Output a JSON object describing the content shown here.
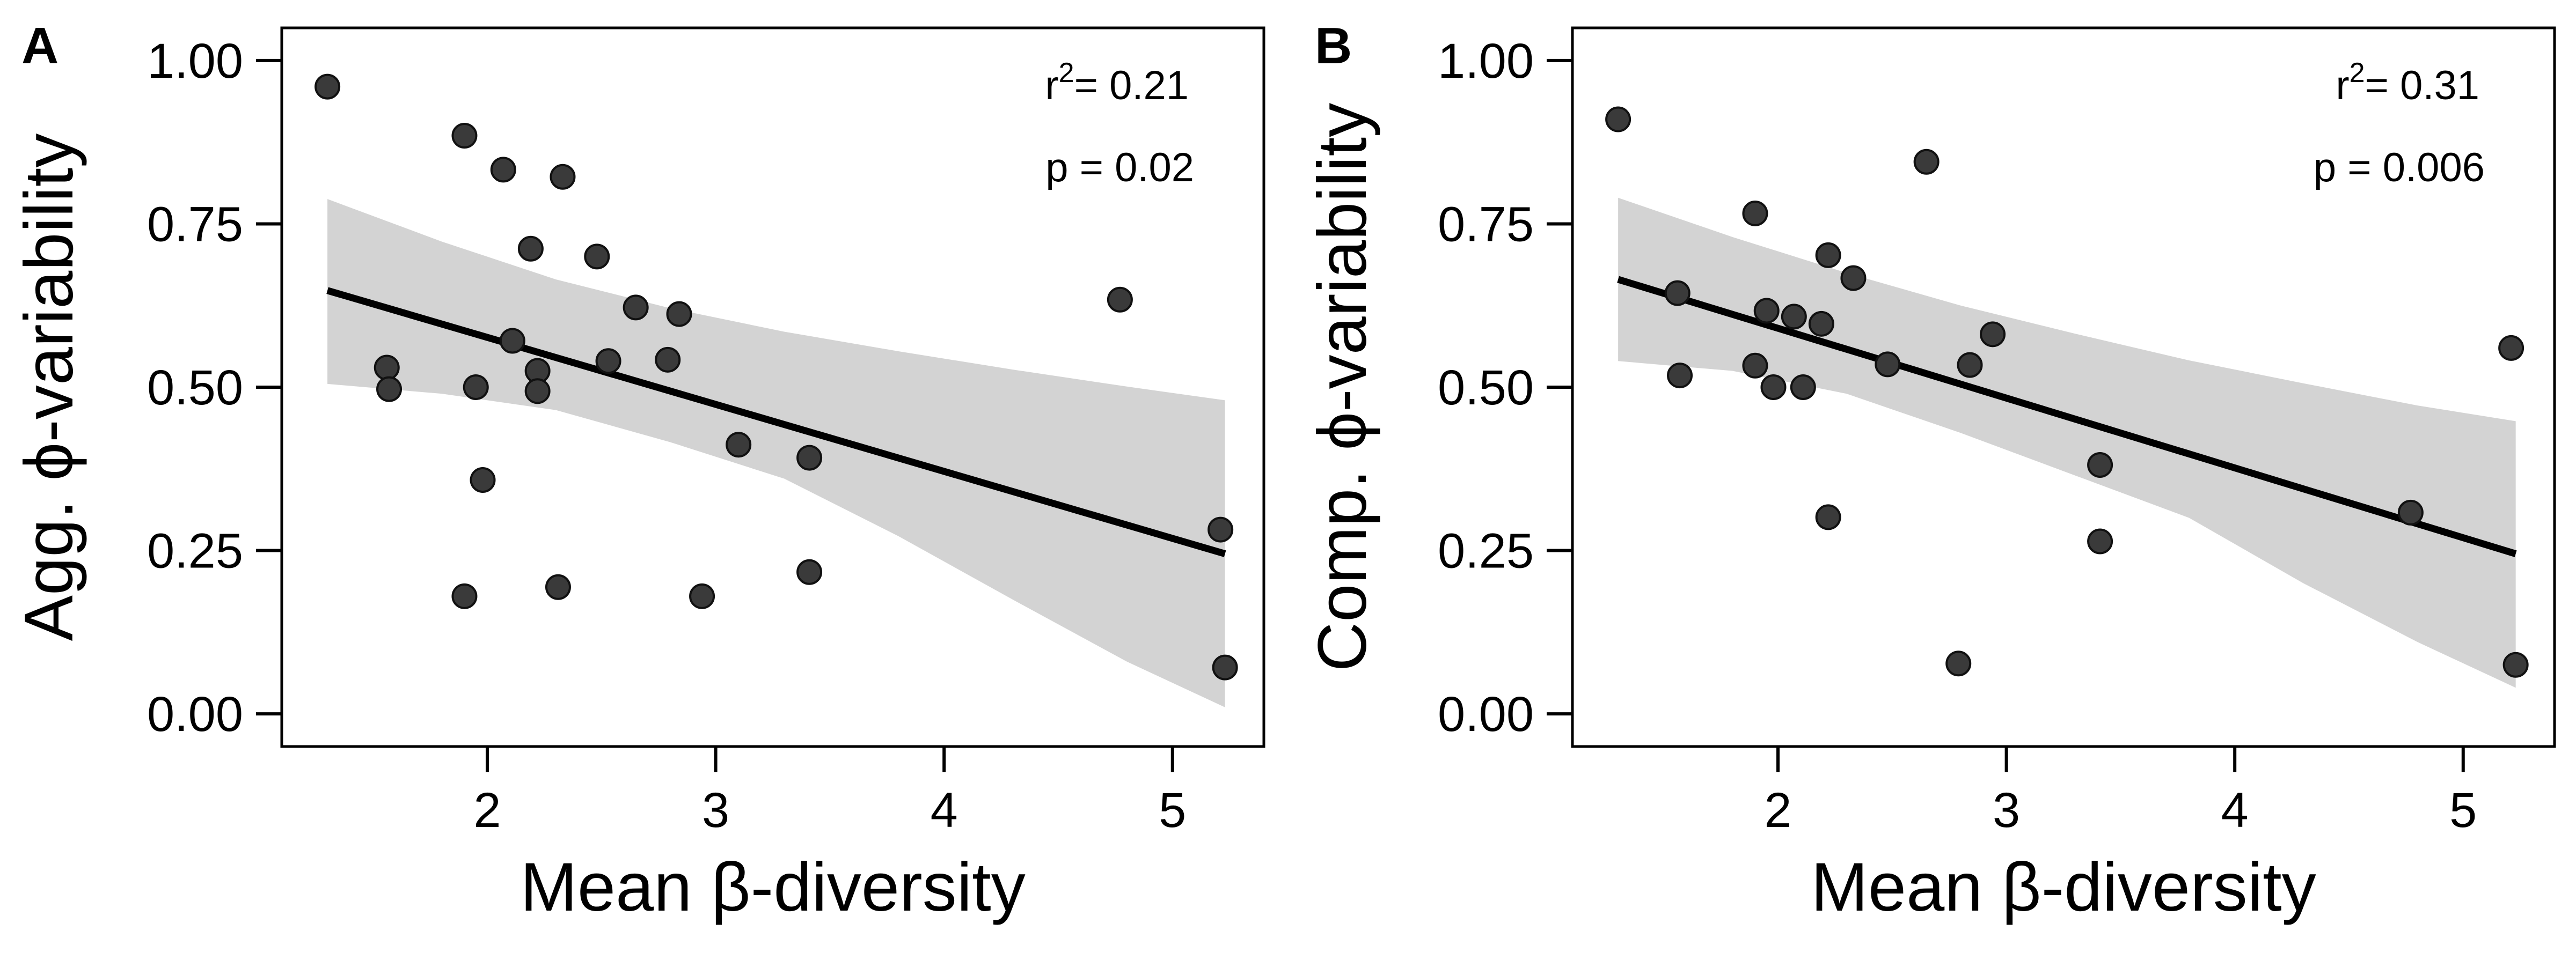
{
  "chart_data": [
    {
      "type": "scatter",
      "panel_label": "A",
      "xlabel": "Mean β-diversity",
      "ylabel": "Agg. ϕ-variability",
      "xlim": [
        1.1,
        5.4
      ],
      "ylim": [
        -0.05,
        1.05
      ],
      "xticks": [
        2,
        3,
        4,
        5
      ],
      "xtick_labels": [
        "2",
        "3",
        "4",
        "5"
      ],
      "yticks": [
        0,
        0.25,
        0.5,
        0.75,
        1.0
      ],
      "ytick_labels": [
        "0.00",
        "0.25",
        "0.50",
        "0.75",
        "1.00"
      ],
      "grid": false,
      "legend": "none",
      "stats": {
        "r2_prefix": "r",
        "r2_superscript": "2",
        "r2_value": "= 0.21",
        "p_text": "p = 0.02"
      },
      "points": [
        {
          "x": 1.3,
          "y": 0.96
        },
        {
          "x": 1.9,
          "y": 0.885
        },
        {
          "x": 2.07,
          "y": 0.833
        },
        {
          "x": 2.33,
          "y": 0.822
        },
        {
          "x": 2.19,
          "y": 0.712
        },
        {
          "x": 2.48,
          "y": 0.7
        },
        {
          "x": 4.77,
          "y": 0.634
        },
        {
          "x": 2.65,
          "y": 0.622
        },
        {
          "x": 2.84,
          "y": 0.612
        },
        {
          "x": 2.11,
          "y": 0.571
        },
        {
          "x": 2.53,
          "y": 0.54
        },
        {
          "x": 2.79,
          "y": 0.542
        },
        {
          "x": 1.56,
          "y": 0.53
        },
        {
          "x": 2.22,
          "y": 0.525
        },
        {
          "x": 1.57,
          "y": 0.497
        },
        {
          "x": 1.95,
          "y": 0.5
        },
        {
          "x": 2.22,
          "y": 0.494
        },
        {
          "x": 3.1,
          "y": 0.412
        },
        {
          "x": 3.41,
          "y": 0.392
        },
        {
          "x": 1.98,
          "y": 0.358
        },
        {
          "x": 5.21,
          "y": 0.282
        },
        {
          "x": 3.41,
          "y": 0.217
        },
        {
          "x": 2.31,
          "y": 0.194
        },
        {
          "x": 1.9,
          "y": 0.18
        },
        {
          "x": 2.94,
          "y": 0.18
        },
        {
          "x": 5.23,
          "y": 0.071
        }
      ],
      "fit": {
        "x": [
          1.3,
          5.23
        ],
        "y": [
          0.648,
          0.245
        ]
      },
      "ci_band": {
        "x": [
          1.3,
          1.8,
          2.3,
          2.8,
          3.3,
          3.8,
          4.3,
          4.8,
          5.23
        ],
        "upper": [
          0.788,
          0.723,
          0.665,
          0.621,
          0.585,
          0.555,
          0.527,
          0.501,
          0.48
        ],
        "lower": [
          0.505,
          0.49,
          0.465,
          0.416,
          0.36,
          0.272,
          0.175,
          0.08,
          0.01
        ]
      },
      "colors": {
        "points": "#3a3a3a",
        "fit_line": "#000000",
        "ci_band": "#d3d3d3"
      }
    },
    {
      "type": "scatter",
      "panel_label": "B",
      "xlabel": "Mean β-diversity",
      "ylabel": "Comp. ϕ-variability",
      "xlim": [
        1.1,
        5.4
      ],
      "ylim": [
        -0.05,
        1.05
      ],
      "xticks": [
        2,
        3,
        4,
        5
      ],
      "xtick_labels": [
        "2",
        "3",
        "4",
        "5"
      ],
      "yticks": [
        0,
        0.25,
        0.5,
        0.75,
        1.0
      ],
      "ytick_labels": [
        "0.00",
        "0.25",
        "0.50",
        "0.75",
        "1.00"
      ],
      "grid": false,
      "legend": "none",
      "stats": {
        "r2_prefix": "r",
        "r2_superscript": "2",
        "r2_value": "= 0.31",
        "p_text": "p = 0.006"
      },
      "points": [
        {
          "x": 1.3,
          "y": 0.91
        },
        {
          "x": 2.65,
          "y": 0.845
        },
        {
          "x": 1.9,
          "y": 0.766
        },
        {
          "x": 2.22,
          "y": 0.702
        },
        {
          "x": 2.33,
          "y": 0.667
        },
        {
          "x": 1.56,
          "y": 0.644
        },
        {
          "x": 1.95,
          "y": 0.617
        },
        {
          "x": 2.07,
          "y": 0.608
        },
        {
          "x": 2.19,
          "y": 0.597
        },
        {
          "x": 2.94,
          "y": 0.581
        },
        {
          "x": 1.9,
          "y": 0.533
        },
        {
          "x": 2.48,
          "y": 0.535
        },
        {
          "x": 2.84,
          "y": 0.534
        },
        {
          "x": 1.57,
          "y": 0.518
        },
        {
          "x": 1.98,
          "y": 0.5
        },
        {
          "x": 2.11,
          "y": 0.5
        },
        {
          "x": 5.21,
          "y": 0.56
        },
        {
          "x": 3.41,
          "y": 0.381
        },
        {
          "x": 4.77,
          "y": 0.308
        },
        {
          "x": 2.22,
          "y": 0.301
        },
        {
          "x": 3.41,
          "y": 0.264
        },
        {
          "x": 2.79,
          "y": 0.077
        },
        {
          "x": 5.23,
          "y": 0.075
        }
      ],
      "fit": {
        "x": [
          1.3,
          5.23
        ],
        "y": [
          0.665,
          0.245
        ]
      },
      "ci_band": {
        "x": [
          1.3,
          1.8,
          2.3,
          2.8,
          3.3,
          3.8,
          4.3,
          4.8,
          5.23
        ],
        "upper": [
          0.79,
          0.73,
          0.675,
          0.625,
          0.582,
          0.541,
          0.506,
          0.472,
          0.448
        ],
        "lower": [
          0.54,
          0.525,
          0.49,
          0.43,
          0.365,
          0.3,
          0.2,
          0.11,
          0.04
        ]
      },
      "colors": {
        "points": "#3a3a3a",
        "fit_line": "#000000",
        "ci_band": "#d3d3d3"
      }
    }
  ]
}
